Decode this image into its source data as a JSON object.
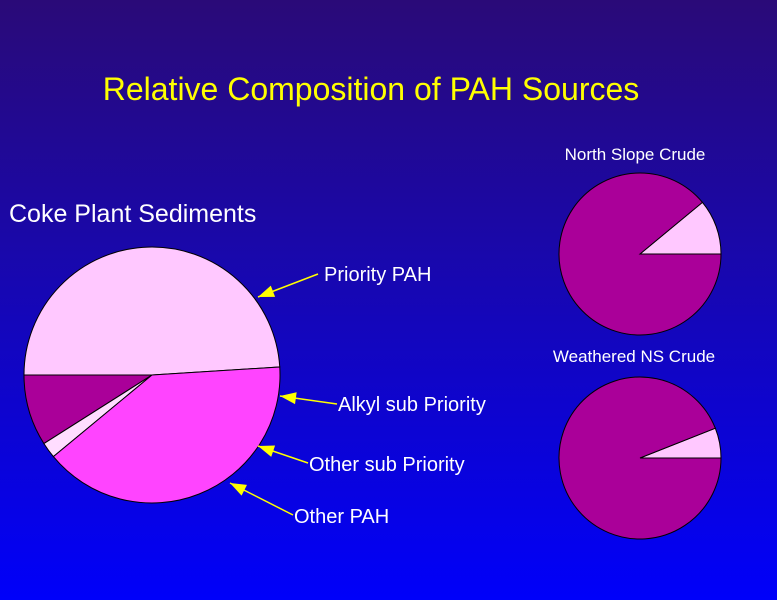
{
  "title": "Relative Composition of PAH Sources",
  "colors": {
    "title": "#FFFF00",
    "label": "#FFFFFF",
    "arrow": "#FFFF00"
  },
  "chart_data": [
    {
      "type": "pie",
      "title": "Coke Plant Sediments",
      "slices": [
        {
          "label": "Priority PAH",
          "value": 49,
          "color": "#FFC8FF"
        },
        {
          "label": "Alkyl sub Priority",
          "value": 9,
          "color": "#AA0099"
        },
        {
          "label": "Other sub Priority",
          "value": 2,
          "color": "#FFDDFF"
        },
        {
          "label": "Other PAH",
          "value": 40,
          "color": "#FF44FF"
        }
      ]
    },
    {
      "type": "pie",
      "title": "North Slope Crude",
      "slices": [
        {
          "value": 11,
          "color": "#FFC8FF"
        },
        {
          "value": 89,
          "color": "#AA0099"
        }
      ]
    },
    {
      "type": "pie",
      "title": "Weathered NS Crude",
      "slices": [
        {
          "value": 6,
          "color": "#FFC8FF"
        },
        {
          "value": 94,
          "color": "#AA0099"
        }
      ]
    }
  ]
}
